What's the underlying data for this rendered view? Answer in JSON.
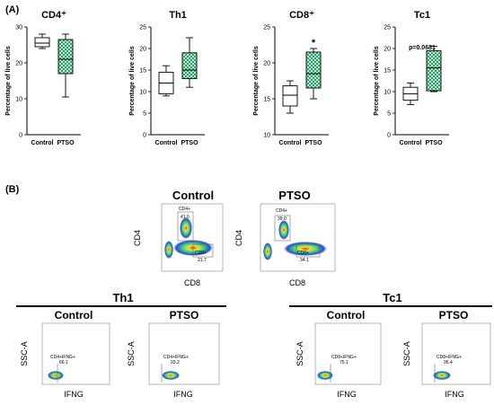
{
  "panel_labels": [
    "(A)",
    "(B)"
  ],
  "chart_data": [
    {
      "type": "box",
      "title": "CD4⁺",
      "ylabel": "Percentage of live cells",
      "categories": [
        "Control",
        "PTSO"
      ],
      "ylim": [
        0,
        30
      ],
      "yticks": [
        0,
        10,
        20,
        30
      ],
      "boxes": [
        {
          "category": "Control",
          "min": 24,
          "q1": 24.5,
          "median": 25.5,
          "q3": 27,
          "max": 28,
          "fill": "#ffffff"
        },
        {
          "category": "PTSO",
          "min": 10.5,
          "q1": 17,
          "median": 21,
          "q3": 26.5,
          "max": 28,
          "fill": "#2e9e6a"
        }
      ],
      "annotation": ""
    },
    {
      "type": "box",
      "title": "Th1",
      "ylabel": "Percentage of live cells",
      "categories": [
        "Control",
        "PTSO"
      ],
      "ylim": [
        0,
        25
      ],
      "yticks": [
        0,
        5,
        10,
        15,
        20,
        25
      ],
      "boxes": [
        {
          "category": "Control",
          "min": 9,
          "q1": 9.5,
          "median": 12,
          "q3": 14.5,
          "max": 16,
          "fill": "#ffffff"
        },
        {
          "category": "PTSO",
          "min": 11,
          "q1": 13,
          "median": 15,
          "q3": 19,
          "max": 22.5,
          "fill": "#2e9e6a"
        }
      ],
      "annotation": ""
    },
    {
      "type": "box",
      "title": "CD8⁺",
      "ylabel": "Percentage of live cells",
      "categories": [
        "Control",
        "PTSO"
      ],
      "ylim": [
        10,
        25
      ],
      "yticks": [
        10,
        15,
        20,
        25
      ],
      "boxes": [
        {
          "category": "Control",
          "min": 13,
          "q1": 14,
          "median": 15.5,
          "q3": 16.8,
          "max": 17.5,
          "fill": "#ffffff"
        },
        {
          "category": "PTSO",
          "min": 15,
          "q1": 16.5,
          "median": 18.5,
          "q3": 21.5,
          "max": 22,
          "fill": "#2e9e6a"
        }
      ],
      "annotation": "*"
    },
    {
      "type": "box",
      "title": "Tc1",
      "ylabel": "Percentage of live cells",
      "categories": [
        "Control",
        "PTSO"
      ],
      "ylim": [
        0,
        25
      ],
      "yticks": [
        0,
        5,
        10,
        15,
        20,
        25
      ],
      "boxes": [
        {
          "category": "Control",
          "min": 7,
          "q1": 8,
          "median": 9.5,
          "q3": 11,
          "max": 12,
          "fill": "#ffffff"
        },
        {
          "category": "PTSO",
          "min": 10,
          "q1": 10.2,
          "median": 15.5,
          "q3": 19.5,
          "max": 20.5,
          "fill": "#2e9e6a"
        }
      ],
      "annotation": "p=0.0681"
    }
  ],
  "flow_top": {
    "xlabel": "CD8",
    "ylabel": "CD4",
    "plots": [
      {
        "title": "Control",
        "gates": [
          {
            "name": "CD4+",
            "value": "41.0"
          },
          {
            "name": "CD8+",
            "value": "21.7"
          }
        ]
      },
      {
        "title": "PTSO",
        "gates": [
          {
            "name": "CD4+",
            "value": "39.0"
          },
          {
            "name": "CD8+",
            "value": "34.1"
          }
        ]
      }
    ]
  },
  "flow_bottom": {
    "groups": [
      {
        "title": "Th1",
        "xlabel": "IFNG",
        "ylabel": "SSC-A",
        "plots": [
          {
            "title": "Control",
            "gate": "CD4+IFNG+",
            "value": "66.1"
          },
          {
            "title": "PTSO",
            "gate": "CD4+IFNG+",
            "value": "93.2"
          }
        ]
      },
      {
        "title": "Tc1",
        "xlabel": "IFNG",
        "ylabel": "SSC-A",
        "plots": [
          {
            "title": "Control",
            "gate": "CD8+IFNG+",
            "value": "75.1"
          },
          {
            "title": "PTSO",
            "gate": "CD8+IFNG+",
            "value": "95.4"
          }
        ]
      }
    ]
  },
  "colors": {
    "ptso_fill": "#2e9e6a",
    "control_fill": "#ffffff",
    "density_low": "#2b4bd6",
    "density_mid": "#3fd17c",
    "density_high": "#f2e23a",
    "density_peak": "#e8391d"
  }
}
